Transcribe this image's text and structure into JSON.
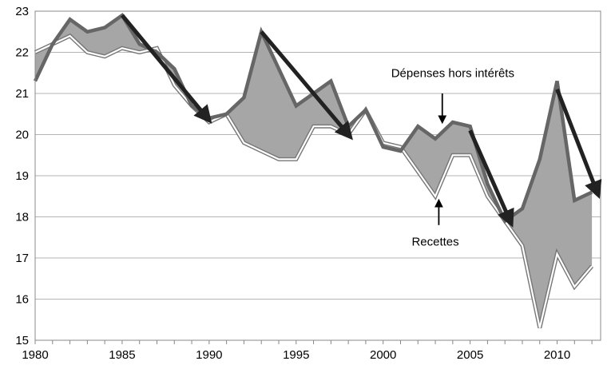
{
  "chart_data": {
    "type": "line",
    "x": [
      1980,
      1981,
      1982,
      1983,
      1984,
      1985,
      1986,
      1987,
      1988,
      1989,
      1990,
      1991,
      1992,
      1993,
      1994,
      1995,
      1996,
      1997,
      1998,
      1999,
      2000,
      2001,
      2002,
      2003,
      2004,
      2005,
      2006,
      2007,
      2008,
      2009,
      2010,
      2011,
      2012
    ],
    "series": [
      {
        "name": "Dépenses hors intérêts",
        "color": "#666666",
        "values": [
          21.3,
          22.2,
          22.8,
          22.5,
          22.6,
          22.9,
          22.2,
          22.0,
          21.6,
          20.7,
          20.4,
          20.5,
          20.9,
          22.5,
          21.6,
          20.7,
          21.0,
          21.3,
          20.2,
          20.6,
          19.7,
          19.6,
          20.2,
          19.9,
          20.3,
          20.2,
          18.8,
          17.9,
          18.2,
          19.4,
          21.3,
          18.4,
          18.6
        ]
      },
      {
        "name": "Recettes",
        "color": "#ffffff",
        "values": [
          22.0,
          22.2,
          22.4,
          22.0,
          21.9,
          22.1,
          22.0,
          22.1,
          21.2,
          20.7,
          20.3,
          20.5,
          19.8,
          19.6,
          19.4,
          19.4,
          20.2,
          20.2,
          20.0,
          20.6,
          19.8,
          19.7,
          19.1,
          18.5,
          19.5,
          19.5,
          18.5,
          17.9,
          17.3,
          15.3,
          17.1,
          16.3,
          16.8
        ]
      }
    ],
    "xticks": [
      "1980",
      "1985",
      "1990",
      "1995",
      "2000",
      "2005",
      "2010"
    ],
    "yticks": [
      "15",
      "16",
      "17",
      "18",
      "19",
      "20",
      "21",
      "22",
      "23"
    ],
    "xlim": [
      1980,
      2012.5
    ],
    "ylim": [
      15,
      23
    ],
    "grid": true,
    "legend": "none",
    "fill_between": {
      "color": "#a6a6a6"
    },
    "annotations": [
      {
        "text": "Dépenses hors intérêts",
        "x": 2004.0,
        "y": 21.5,
        "arrow_from": [
          2003.4,
          21.0
        ],
        "arrow_to": [
          2003.4,
          20.3
        ]
      },
      {
        "text": "Recettes",
        "x": 2003.0,
        "y": 17.4,
        "arrow_from": [
          2003.2,
          17.8
        ],
        "arrow_to": [
          2003.2,
          18.4
        ]
      }
    ],
    "trend_arrows": [
      {
        "from": [
          1985.0,
          22.9
        ],
        "to": [
          1989.9,
          20.4
        ]
      },
      {
        "from": [
          1993.0,
          22.5
        ],
        "to": [
          1998.0,
          20.0
        ]
      },
      {
        "from": [
          2005.0,
          20.1
        ],
        "to": [
          2007.3,
          17.9
        ]
      },
      {
        "from": [
          2010.0,
          21.1
        ],
        "to": [
          2012.3,
          18.6
        ]
      }
    ]
  }
}
